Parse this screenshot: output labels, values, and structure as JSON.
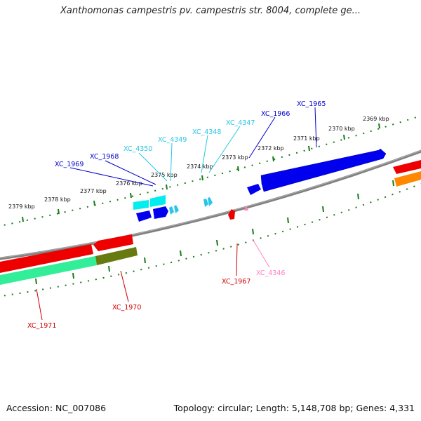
{
  "title": "Xanthomonas campestris pv. campestris str. 8004, complete ge...",
  "footer": {
    "accession": "Accession: NC_007086",
    "summary": "Topology: circular; Length: 5,148,708 bp; Genes: 4,331"
  },
  "colors": {
    "backbone": "#808080",
    "tick": "#1a7a1a",
    "dark_blue": "#0000ee",
    "light_blue": "#28c6e6",
    "red": "#ee0000",
    "pink": "#ff80c0",
    "cyan": "#00ffff",
    "green": "#33ee99",
    "olive": "#667a10",
    "orange": "#ff8800"
  },
  "scale_labels": [
    "2369 kbp",
    "2370 kbp",
    "2371 kbp",
    "2372 kbp",
    "2373 kbp",
    "2374 kbp",
    "2375 kbp",
    "2376 kbp",
    "2377 kbp",
    "2378 kbp",
    "2379 kbp"
  ],
  "genes": [
    {
      "id": "XC_1965",
      "color_key": "dark_blue"
    },
    {
      "id": "XC_1966",
      "color_key": "dark_blue"
    },
    {
      "id": "XC_4347",
      "color_key": "light_blue"
    },
    {
      "id": "XC_4348",
      "color_key": "light_blue"
    },
    {
      "id": "XC_4349",
      "color_key": "light_blue"
    },
    {
      "id": "XC_4350",
      "color_key": "light_blue"
    },
    {
      "id": "XC_1968",
      "color_key": "dark_blue"
    },
    {
      "id": "XC_1969",
      "color_key": "dark_blue"
    },
    {
      "id": "XC_1967",
      "color_key": "red"
    },
    {
      "id": "XC_4346",
      "color_key": "pink"
    },
    {
      "id": "XC_1970",
      "color_key": "red"
    },
    {
      "id": "XC_1971",
      "color_key": "red"
    }
  ]
}
